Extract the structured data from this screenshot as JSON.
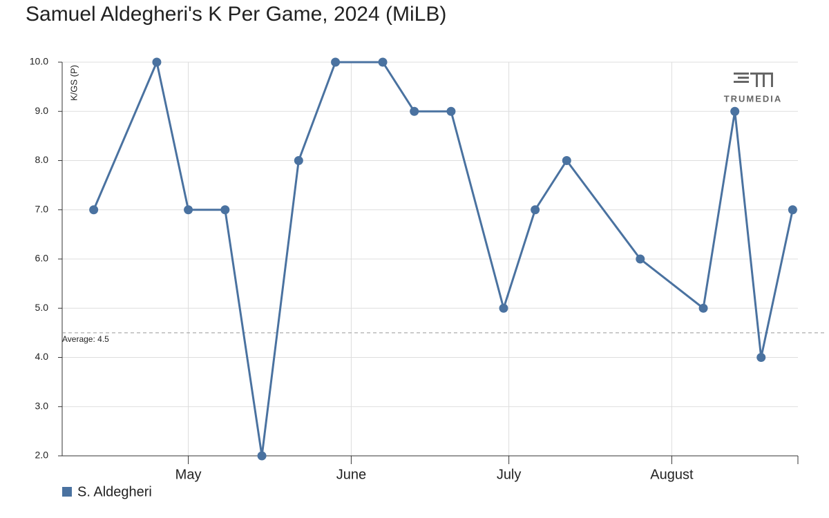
{
  "chart_data": {
    "type": "line",
    "title": "Samuel Aldegheri's K Per Game, 2024 (MiLB)",
    "y_label": "K/GS (P)",
    "logo": "TRUMEDIA",
    "x": [
      104,
      116,
      122,
      129,
      136,
      143,
      150,
      159,
      165,
      172,
      182,
      188,
      194,
      208,
      220,
      226,
      231,
      237
    ],
    "series": [
      {
        "name": "S. Aldegheri",
        "color": "#4a72a0",
        "values": [
          7,
          10,
          7,
          7,
          2,
          8,
          10,
          10,
          9,
          9,
          5,
          7,
          8,
          6,
          5,
          9,
          4,
          7
        ]
      }
    ],
    "xlim": [
      98,
      238
    ],
    "xticks": [
      {
        "value": 122,
        "label": "May"
      },
      {
        "value": 153,
        "label": "June"
      },
      {
        "value": 183,
        "label": "July"
      },
      {
        "value": 214,
        "label": "August"
      }
    ],
    "ylim": [
      2,
      10
    ],
    "yticks": [
      {
        "value": 2,
        "label": "2.0"
      },
      {
        "value": 3,
        "label": "3.0"
      },
      {
        "value": 4,
        "label": "4.0"
      },
      {
        "value": 5,
        "label": "5.0"
      },
      {
        "value": 6,
        "label": "6.0"
      },
      {
        "value": 7,
        "label": "7.0"
      },
      {
        "value": 8,
        "label": "8.0"
      },
      {
        "value": 9,
        "label": "9.0"
      },
      {
        "value": 10,
        "label": "10.0"
      }
    ],
    "average": {
      "value": 4.5,
      "label": "Average: 4.5"
    },
    "grid": true
  }
}
